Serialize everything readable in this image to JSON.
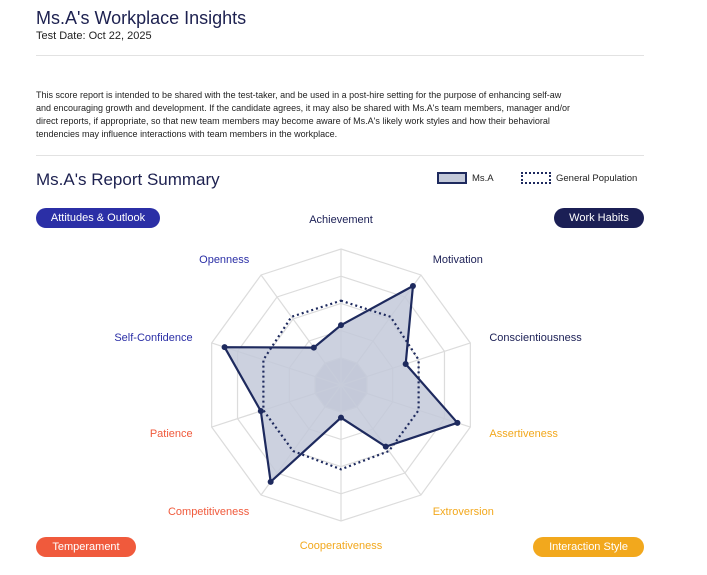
{
  "header": {
    "title": "Ms.A's Workplace Insights",
    "test_date": "Test Date: Oct 22, 2025"
  },
  "intro_lines": [
    "This score report is intended to be shared with the test-taker, and be used in a post-hire setting for the purpose of enhancing self-aw",
    "and encouraging growth and development. If the candidate agrees, it may also be shared with Ms.A's team members, manager and/or",
    "direct reports, if appropriate, so that new team members may become aware of Ms.A's likely work styles and how their behavioral",
    "tendencies may influence interactions with team members in the workplace."
  ],
  "summary": {
    "title": "Ms.A's Report Summary"
  },
  "legend": {
    "candidate": "Ms.A",
    "population": "General Population"
  },
  "categories": {
    "attitudes": {
      "label": "Attitudes & Outlook",
      "color": "#2b2fa6"
    },
    "work_habits": {
      "label": "Work Habits",
      "color": "#1b1f55"
    },
    "temperament": {
      "label": "Temperament",
      "color": "#f05a3c"
    },
    "interaction": {
      "label": "Interaction Style",
      "color": "#f2a81d"
    }
  },
  "colors": {
    "series_fill": "#c3c9d9",
    "series_stroke": "#1e2a5e",
    "grid": "#dcdcdc",
    "inner_fill": "#c7cbd3"
  },
  "chart_data": {
    "type": "radar",
    "categories": [
      "Achievement",
      "Motivation",
      "Conscientiousness",
      "Assertiveness",
      "Extroversion",
      "Cooperativeness",
      "Competitiveness",
      "Patience",
      "Self-Confidence",
      "Openness"
    ],
    "category_groups": [
      "work_habits",
      "work_habits",
      "work_habits",
      "interaction",
      "interaction",
      "interaction",
      "temperament",
      "temperament",
      "attitudes",
      "attitudes"
    ],
    "rlim": [
      0,
      5
    ],
    "series": [
      {
        "name": "Ms.A",
        "style": "solid-filled",
        "values": [
          2.2,
          4.5,
          2.5,
          4.5,
          2.8,
          1.2,
          4.4,
          3.1,
          4.5,
          1.7
        ]
      },
      {
        "name": "General Population",
        "style": "dotted",
        "values": [
          3.1,
          3.1,
          3.0,
          3.0,
          3.0,
          3.1,
          3.0,
          3.0,
          3.0,
          3.1
        ]
      }
    ]
  }
}
